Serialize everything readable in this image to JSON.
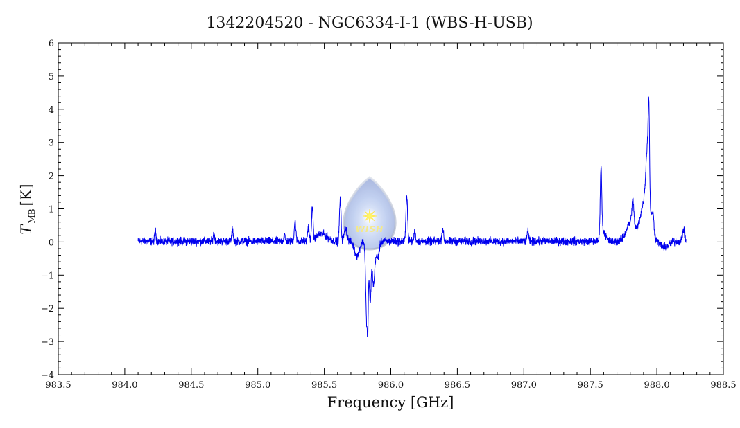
{
  "chart_data": {
    "type": "line",
    "title": "1342204520 - NGC6334-I-1 (WBS-H-USB)",
    "xlabel": "Frequency [GHz]",
    "ylabel_main": "T",
    "ylabel_sub": "MB",
    "ylabel_unit": "[K]",
    "xlim": [
      983.5,
      988.5
    ],
    "ylim": [
      -4,
      6
    ],
    "x_ticks": [
      983.5,
      984.0,
      984.5,
      985.0,
      985.5,
      986.0,
      986.5,
      987.0,
      987.5,
      988.0,
      988.5
    ],
    "x_tick_labels": [
      "983.5",
      "984.0",
      "984.5",
      "985.0",
      "985.5",
      "986.0",
      "986.5",
      "987.0",
      "987.5",
      "988.0",
      "988.5"
    ],
    "y_ticks": [
      -4,
      -3,
      -2,
      -1,
      0,
      1,
      2,
      3,
      4,
      5,
      6
    ],
    "y_tick_labels": [
      "−4",
      "−3",
      "−2",
      "−1",
      "0",
      "1",
      "2",
      "3",
      "4",
      "5",
      "6"
    ],
    "grid": false,
    "series": [
      {
        "color": "#0000ee",
        "x_range": [
          984.1,
          988.22
        ],
        "baseline": 0.02,
        "noise_amplitude": 0.12,
        "features": [
          {
            "center": 984.23,
            "amplitude": 0.3,
            "width": 0.005
          },
          {
            "center": 984.67,
            "amplitude": 0.22,
            "width": 0.006
          },
          {
            "center": 984.81,
            "amplitude": 0.33,
            "width": 0.006
          },
          {
            "center": 985.2,
            "amplitude": 0.2,
            "width": 0.005
          },
          {
            "center": 985.28,
            "amplitude": 0.6,
            "width": 0.006
          },
          {
            "center": 985.38,
            "amplitude": 0.42,
            "width": 0.006
          },
          {
            "center": 985.41,
            "amplitude": 1.05,
            "width": 0.005
          },
          {
            "center": 985.48,
            "amplitude": 0.22,
            "width": 0.04
          },
          {
            "center": 985.62,
            "amplitude": 1.25,
            "width": 0.006
          },
          {
            "center": 985.66,
            "amplitude": 0.4,
            "width": 0.01
          },
          {
            "center": 985.745,
            "amplitude": -0.45,
            "width": 0.018
          },
          {
            "center": 985.82,
            "amplitude": -2.6,
            "width": 0.008
          },
          {
            "center": 985.828,
            "amplitude": -1.1,
            "width": 0.003
          },
          {
            "center": 985.845,
            "amplitude": -1.8,
            "width": 0.007
          },
          {
            "center": 985.87,
            "amplitude": -1.3,
            "width": 0.009
          },
          {
            "center": 985.9,
            "amplitude": -0.5,
            "width": 0.012
          },
          {
            "center": 986.12,
            "amplitude": 1.42,
            "width": 0.006
          },
          {
            "center": 986.18,
            "amplitude": 0.32,
            "width": 0.005
          },
          {
            "center": 986.39,
            "amplitude": 0.38,
            "width": 0.006
          },
          {
            "center": 987.03,
            "amplitude": 0.35,
            "width": 0.005
          },
          {
            "center": 987.58,
            "amplitude": 2.15,
            "width": 0.006
          },
          {
            "center": 987.6,
            "amplitude": 0.3,
            "width": 0.015
          },
          {
            "center": 987.8,
            "amplitude": 0.55,
            "width": 0.03
          },
          {
            "center": 987.82,
            "amplitude": 0.75,
            "width": 0.008
          },
          {
            "center": 987.91,
            "amplitude": 1.2,
            "width": 0.035
          },
          {
            "center": 987.93,
            "amplitude": 1.8,
            "width": 0.012
          },
          {
            "center": 987.94,
            "amplitude": 2.2,
            "width": 0.005
          },
          {
            "center": 987.97,
            "amplitude": 0.6,
            "width": 0.008
          },
          {
            "center": 988.06,
            "amplitude": -0.18,
            "width": 0.03
          },
          {
            "center": 988.2,
            "amplitude": 0.35,
            "width": 0.008
          }
        ]
      }
    ]
  },
  "watermark": {
    "text": "WISH",
    "icon": "star-icon"
  }
}
